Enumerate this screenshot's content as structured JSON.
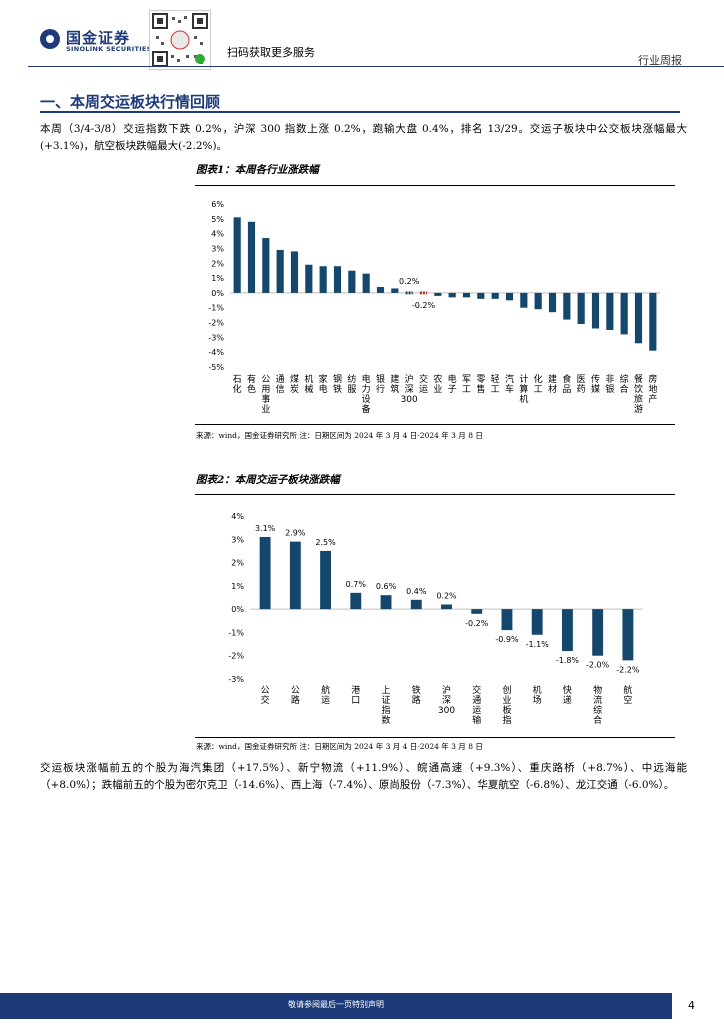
{
  "header": {
    "logo_cn": "国金证券",
    "logo_en": "SINOLINK SECURITIES",
    "qr_caption": "扫码获取更多服务",
    "report_type": "行业周报"
  },
  "section": {
    "title": "一、本周交运板块行情回顾"
  },
  "paragraph1": "本周（3/4-3/8）交运指数下跌 0.2%，沪深 300 指数上涨 0.2%，跑输大盘 0.4%，排名 13/29。交运子板块中公交板块涨幅最大(+3.1%)，航空板块跌幅最大(-2.2%)。",
  "paragraph2": "交运板块涨幅前五的个股为海汽集团（+17.5%）、新宁物流（+11.9%）、皖通高速（+9.3%）、重庆路桥（+8.7%）、中远海能（+8.0%）；跌幅前五的个股为密尔克卫（-14.6%）、西上海（-7.4%）、原尚股份（-7.3%）、华夏航空（-6.8%）、龙江交通（-6.0%）。",
  "chart_data": [
    {
      "type": "bar",
      "title": "图表1：本周各行业涨跌幅",
      "categories": [
        "石化",
        "有色",
        "公用事业",
        "通信",
        "煤炭",
        "机械",
        "家电",
        "钢铁",
        "纺服",
        "电力设备",
        "银行",
        "建筑",
        "沪深300",
        "交运",
        "农业",
        "电子",
        "军工",
        "零售",
        "轻工",
        "汽车",
        "计算机",
        "化工",
        "建材",
        "食品",
        "医药",
        "传媒",
        "非银",
        "综合",
        "餐饮旅游",
        "房地产"
      ],
      "values": [
        5.1,
        4.8,
        3.7,
        2.9,
        2.8,
        1.9,
        1.8,
        1.8,
        1.5,
        1.3,
        0.4,
        0.3,
        0.2,
        -0.2,
        -0.2,
        -0.3,
        -0.3,
        -0.4,
        -0.4,
        -0.5,
        -1.0,
        -1.1,
        -1.3,
        -1.8,
        -2.1,
        -2.4,
        -2.5,
        -2.8,
        -3.4,
        -3.9
      ],
      "labels": {
        "12": "0.2%",
        "13": "-0.2%"
      },
      "highlight": [
        12,
        13
      ],
      "ylim": [
        -5,
        6
      ],
      "yticks": [
        "6%",
        "5%",
        "4%",
        "3%",
        "2%",
        "1%",
        "0%",
        "-1%",
        "-2%",
        "-3%",
        "-4%",
        "-5%"
      ],
      "xlabel": "",
      "ylabel": "",
      "colors": {
        "bar": "#14476b",
        "highlight": "#c0392b"
      },
      "source": "来源：wind，国金证券研究所   注：日期区间为 2024 年 3 月 4 日-2024 年 3 月 8 日"
    },
    {
      "type": "bar",
      "title": "图表2：本周交运子板块涨跌幅",
      "categories": [
        "公交",
        "公路",
        "航运",
        "港口",
        "上证指数",
        "铁路",
        "沪深300",
        "交通运输",
        "创业板指",
        "机场",
        "快递",
        "物流综合",
        "航空"
      ],
      "values": [
        3.1,
        2.9,
        2.5,
        0.7,
        0.6,
        0.4,
        0.2,
        -0.2,
        -0.9,
        -1.1,
        -1.8,
        -2.0,
        -2.2
      ],
      "data_labels": [
        "3.1%",
        "2.9%",
        "2.5%",
        "0.7%",
        "0.6%",
        "0.4%",
        "0.2%",
        "-0.2%",
        "-0.9%",
        "-1.1%",
        "-1.8%",
        "-2.0%",
        "-2.2%"
      ],
      "ylim": [
        -3,
        4
      ],
      "yticks": [
        "4%",
        "3%",
        "2%",
        "1%",
        "0%",
        "-1%",
        "-2%",
        "-3%"
      ],
      "xlabel": "",
      "ylabel": "",
      "colors": {
        "bar": "#14476b"
      },
      "source": "来源：wind，国金证券研究所   注：日期区间为 2024 年 3 月 4 日-2024 年 3 月 8 日"
    }
  ],
  "footer": {
    "disclaimer": "敬请参阅最后一页特别声明",
    "page_number": "4"
  }
}
